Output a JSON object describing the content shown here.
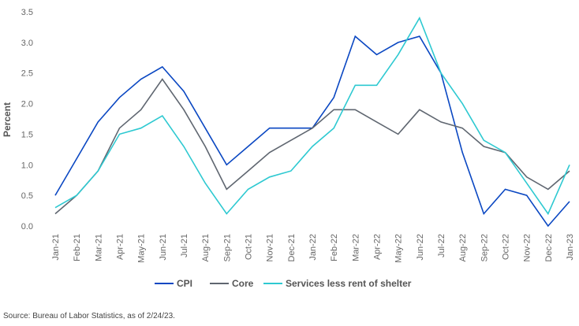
{
  "chart_data": {
    "type": "line",
    "title": "",
    "xlabel": "",
    "ylabel": "Percent",
    "ylim": [
      0,
      3.5
    ],
    "yticks": [
      "0.0",
      "0.5",
      "1.0",
      "1.5",
      "2.0",
      "2.5",
      "3.0",
      "3.5"
    ],
    "grid": false,
    "legend_position": "bottom",
    "categories": [
      "Jan-21",
      "Feb-21",
      "Mar-21",
      "Apr-21",
      "May-21",
      "Jun-21",
      "Jul-21",
      "Aug-21",
      "Sep-21",
      "Oct-21",
      "Nov-21",
      "Dec-21",
      "Jan-22",
      "Feb-22",
      "Mar-22",
      "Apr-22",
      "May-22",
      "Jun-22",
      "Jul-22",
      "Aug-22",
      "Sep-22",
      "Oct-22",
      "Nov-22",
      "Dec-22",
      "Jan-23"
    ],
    "series": [
      {
        "name": "CPI",
        "color": "#0a47c2",
        "values": [
          0.5,
          1.1,
          1.7,
          2.1,
          2.4,
          2.6,
          2.2,
          1.6,
          1.0,
          1.3,
          1.6,
          1.6,
          1.6,
          2.1,
          3.1,
          2.8,
          3.0,
          3.1,
          2.5,
          1.2,
          0.2,
          0.6,
          0.5,
          0.0,
          0.4
        ]
      },
      {
        "name": "Core",
        "color": "#5f6670",
        "values": [
          0.2,
          0.5,
          0.9,
          1.6,
          1.9,
          2.4,
          1.9,
          1.3,
          0.6,
          0.9,
          1.2,
          1.4,
          1.6,
          1.9,
          1.9,
          1.7,
          1.5,
          1.9,
          1.7,
          1.6,
          1.3,
          1.2,
          0.8,
          0.6,
          0.9
        ]
      },
      {
        "name": "Services less rent of shelter",
        "color": "#2ec9d1",
        "values": [
          0.3,
          0.5,
          0.9,
          1.5,
          1.6,
          1.8,
          1.3,
          0.7,
          0.2,
          0.6,
          0.8,
          0.9,
          1.3,
          1.6,
          2.3,
          2.3,
          2.8,
          3.4,
          2.5,
          2.0,
          1.4,
          1.2,
          0.7,
          0.2,
          1.0
        ]
      }
    ]
  },
  "source": "Source: Bureau of Labor Statistics, as of 2/24/23."
}
